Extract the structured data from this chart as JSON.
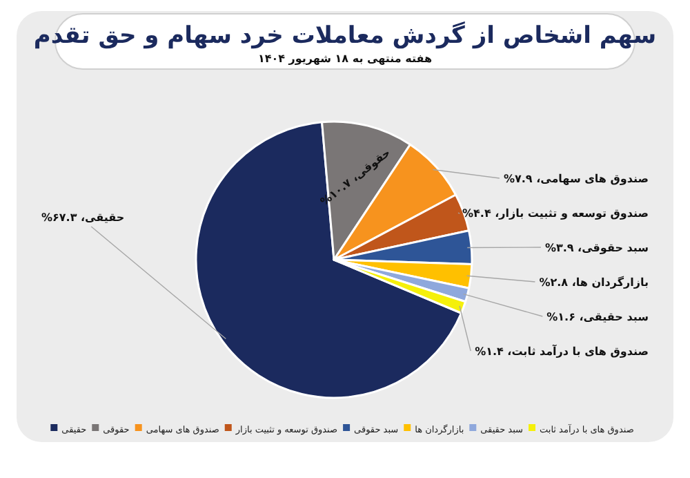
{
  "chart_data": {
    "type": "pie",
    "title": "سهم اشخاص از گردش معاملات خرد سهام و حق تقدم",
    "subtitle": "هفته منتهی به ۱۸ شهریور ۱۴۰۴",
    "categories": [
      "حقیقی",
      "حقوقی",
      "صندوق های سهامی",
      "صندوق توسعه و تثبیت بازار",
      "سبد حقوقی",
      "بازارگردان ها",
      "سبد حقیقی",
      "صندوق های با درآمد ثابت"
    ],
    "values": [
      67.3,
      10.7,
      7.9,
      4.4,
      3.9,
      2.8,
      1.6,
      1.4
    ],
    "colors": [
      "#1b2a5e",
      "#7a7676",
      "#f7931e",
      "#c0561b",
      "#2e5597",
      "#ffc000",
      "#8fa8dc",
      "#f5f00a"
    ],
    "value_labels": [
      "حقیقی، ۶۷.۳%",
      "حقوقی، ۱۰.۷%",
      "صندوق های سهامی، ۷.۹%",
      "صندوق توسعه و تثبیت بازار، ۴.۴%",
      "سبد حقوقی، ۳.۹%",
      "بازارگردان ها، ۲.۸%",
      "سبد حقیقی، ۱.۶%",
      "صندوق های با درآمد ثابت، ۱.۴%"
    ],
    "legend": "bottom"
  }
}
